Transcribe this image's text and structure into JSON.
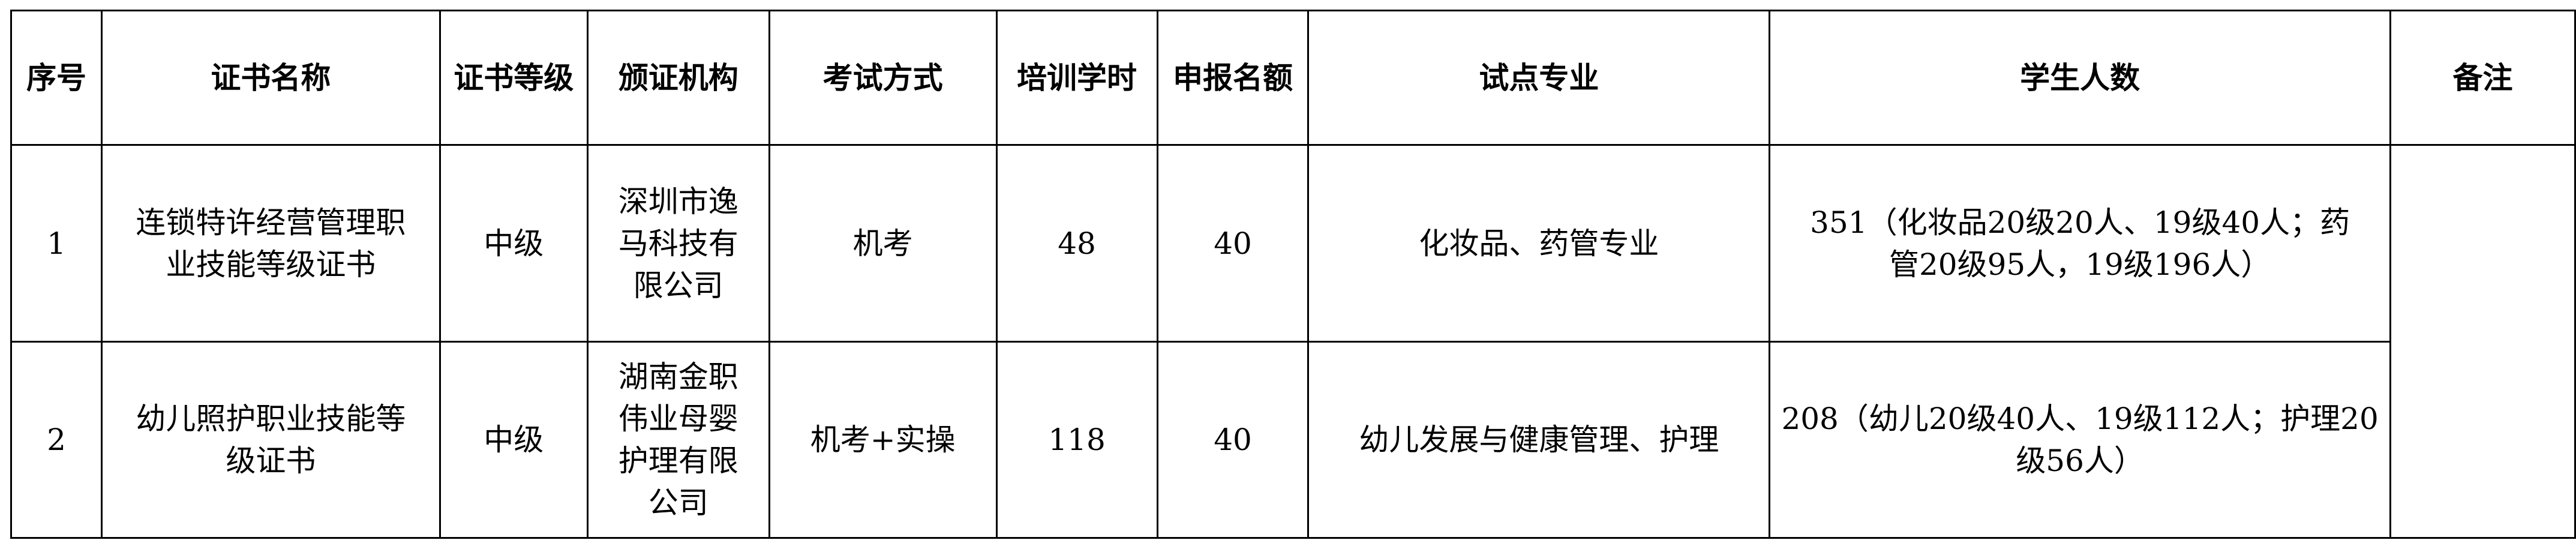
{
  "headers": [
    "序号",
    "证书名称",
    "证书等级",
    "颁证机构",
    "考试方式",
    "培训学时",
    "申报名额",
    "试点专业",
    "学生人数",
    "备注"
  ],
  "rows": [
    {
      "index": "1",
      "certificate": "连锁特许经营管理职业技能等级证书",
      "level": "中级",
      "issuer": "深圳市逸马科技有限公司",
      "exam_method": "机考",
      "training_hours": "48",
      "quota": "40",
      "majors": "化妆品、药管专业",
      "students": "351（化妆品20级20人、19级40人；药管20级95人，19级196人）"
    },
    {
      "index": "2",
      "certificate": "幼儿照护职业技能等级证书",
      "level": "中级",
      "issuer": "湖南金职伟业母婴护理有限公司",
      "exam_method": "机考+实操",
      "training_hours": "118",
      "quota": "40",
      "majors": "幼儿发展与健康管理、护理",
      "students": "208（幼儿20级40人、19级112人；护理20级56人）"
    }
  ],
  "remarks": ""
}
